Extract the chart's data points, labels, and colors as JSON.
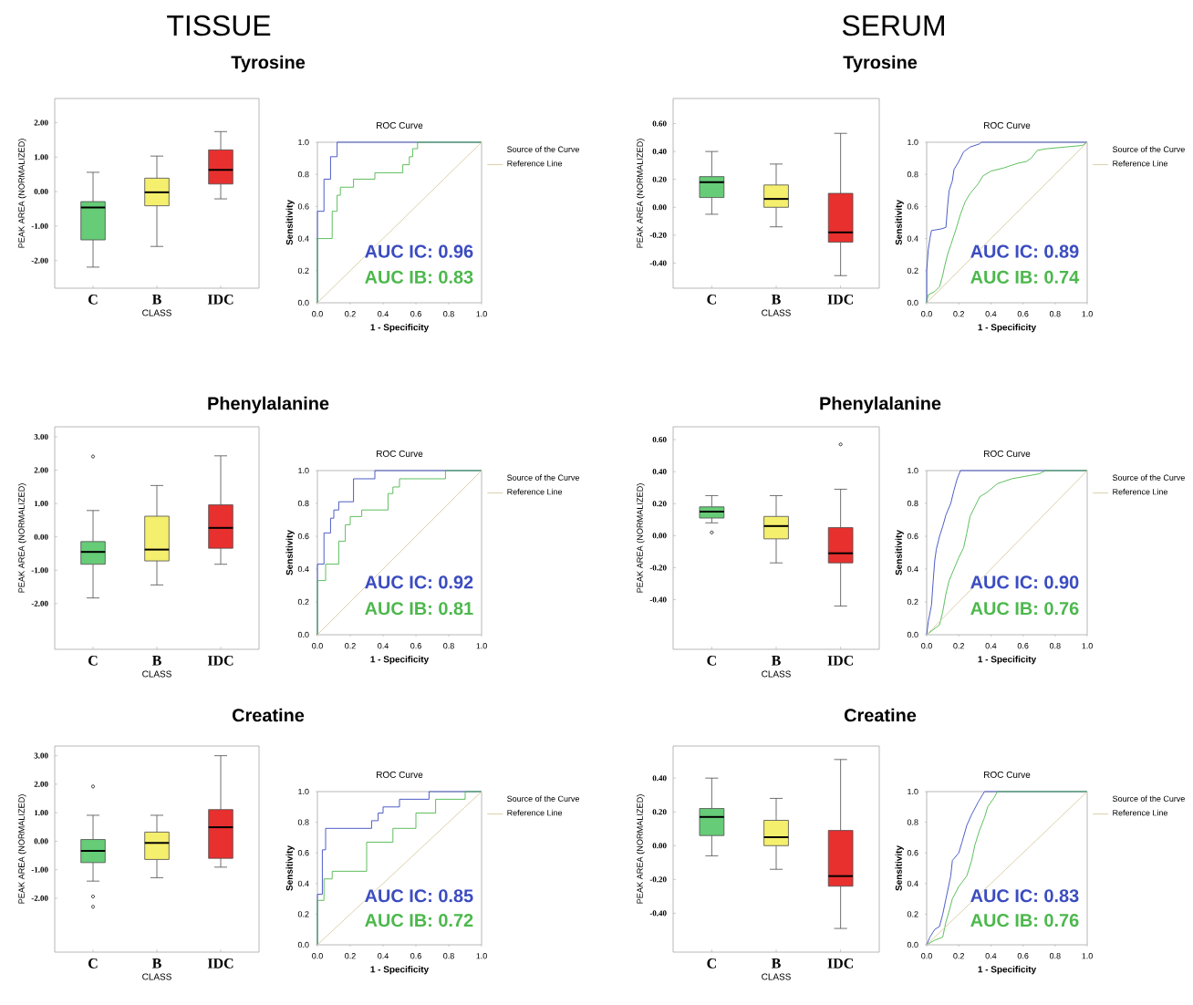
{
  "chart_data": [
    {
      "type": "box",
      "title": "Tyrosine",
      "annotations": [
        "TISSUE"
      ],
      "xlabel": "CLASS",
      "ylabel": "PEAK AREA (NORMALIZED)",
      "categories": [
        "C",
        "B",
        "IDC"
      ],
      "colors": [
        "#66cc77",
        "#f5ef6e",
        "#e8302f"
      ],
      "boxes": [
        {
          "low": -2.19,
          "q1": -1.4,
          "median": -0.46,
          "q3": -0.29,
          "high": 0.56
        },
        {
          "low": -1.59,
          "q1": -0.41,
          "median": -0.02,
          "q3": 0.39,
          "high": 1.03
        },
        {
          "low": -0.21,
          "q1": 0.22,
          "median": 0.63,
          "q3": 1.21,
          "high": 1.74
        }
      ],
      "ylim": [
        -2.8,
        2.7
      ],
      "yticks": [
        {
          "value": -2,
          "label": "-2.00"
        },
        {
          "value": -1,
          "label": "-1.00"
        },
        {
          "value": 0,
          "label": "0.00"
        },
        {
          "value": 1,
          "label": "1.00"
        },
        {
          "value": 2,
          "label": "2.00"
        }
      ]
    },
    {
      "type": "line",
      "title": "ROC Curve",
      "xlabel": "1 - Specificity",
      "ylabel": "Sensitivity",
      "legend": "right",
      "legend_title": "Source of the Curve",
      "annotations": [
        "AUC IC: 0.96",
        "AUC IB: 0.83"
      ],
      "xlim": [
        0,
        1
      ],
      "ylim": [
        0,
        1
      ],
      "xticks": [
        {
          "value": 0,
          "label": "0.0"
        },
        {
          "value": 0.2,
          "label": "0.2"
        },
        {
          "value": 0.4,
          "label": "0.4"
        },
        {
          "value": 0.6,
          "label": "0.6"
        },
        {
          "value": 0.8,
          "label": "0.8"
        },
        {
          "value": 1,
          "label": "1.0"
        }
      ],
      "yticks": [
        {
          "value": 0,
          "label": "0.0"
        },
        {
          "value": 0.2,
          "label": "0.2"
        },
        {
          "value": 0.4,
          "label": "0.4"
        },
        {
          "value": 0.6,
          "label": "0.6"
        },
        {
          "value": 0.8,
          "label": "0.8"
        },
        {
          "value": 1,
          "label": "1.0"
        }
      ],
      "series": [
        {
          "color": "#3b4cc0",
          "x": [
            0,
            0,
            0.04,
            0.04,
            0.08,
            0.08,
            0.12,
            0.12,
            1
          ],
          "values": [
            0,
            0.57,
            0.57,
            0.77,
            0.77,
            0.91,
            0.91,
            1,
            1
          ]
        },
        {
          "color": "#4db84d",
          "x": [
            0,
            0,
            0.09,
            0.09,
            0.12,
            0.12,
            0.14,
            0.14,
            0.22,
            0.22,
            0.35,
            0.35,
            0.52,
            0.52,
            0.56,
            0.56,
            0.58,
            0.58,
            0.61,
            0.61,
            1
          ],
          "values": [
            0,
            0.4,
            0.4,
            0.57,
            0.57,
            0.67,
            0.67,
            0.72,
            0.72,
            0.77,
            0.77,
            0.81,
            0.81,
            0.86,
            0.86,
            0.91,
            0.91,
            0.96,
            0.96,
            1,
            1
          ]
        },
        {
          "name": "Reference Line",
          "color": "#d8cca0",
          "x": [
            0,
            1
          ],
          "values": [
            0,
            1
          ]
        }
      ]
    },
    {
      "type": "box",
      "title": "Tyrosine",
      "annotations": [
        "SERUM"
      ],
      "xlabel": "CLASS",
      "ylabel": "PEAK AREA (NORMALIZED)",
      "categories": [
        "C",
        "B",
        "IDC"
      ],
      "colors": [
        "#66cc77",
        "#f5ef6e",
        "#e8302f"
      ],
      "boxes": [
        {
          "low": -0.05,
          "q1": 0.07,
          "median": 0.18,
          "q3": 0.22,
          "high": 0.4
        },
        {
          "low": -0.14,
          "q1": 0.0,
          "median": 0.06,
          "q3": 0.16,
          "high": 0.31
        },
        {
          "low": -0.49,
          "q1": -0.25,
          "median": -0.18,
          "q3": 0.1,
          "high": 0.53
        }
      ],
      "ylim": [
        -0.58,
        0.78
      ],
      "yticks": [
        {
          "value": -0.4,
          "label": "-0.40"
        },
        {
          "value": -0.2,
          "label": "-0.20"
        },
        {
          "value": 0,
          "label": "0.00"
        },
        {
          "value": 0.2,
          "label": "0.20"
        },
        {
          "value": 0.4,
          "label": "0.40"
        },
        {
          "value": 0.6,
          "label": "0.60"
        }
      ]
    },
    {
      "type": "line",
      "title": "ROC Curve",
      "xlabel": "1 - Specificity",
      "ylabel": "Sensitivity",
      "legend": "right",
      "legend_title": "Source of the Curve",
      "annotations": [
        "AUC IC: 0.89",
        "AUC IB: 0.74"
      ],
      "xlim": [
        0,
        1
      ],
      "ylim": [
        0,
        1
      ],
      "xticks": [
        {
          "value": 0,
          "label": "0.0"
        },
        {
          "value": 0.2,
          "label": "0.2"
        },
        {
          "value": 0.4,
          "label": "0.4"
        },
        {
          "value": 0.6,
          "label": "0.6"
        },
        {
          "value": 0.8,
          "label": "0.8"
        },
        {
          "value": 1,
          "label": "1.0"
        }
      ],
      "yticks": [
        {
          "value": 0,
          "label": "0.0"
        },
        {
          "value": 0.2,
          "label": "0.2"
        },
        {
          "value": 0.4,
          "label": "0.4"
        },
        {
          "value": 0.6,
          "label": "0.6"
        },
        {
          "value": 0.8,
          "label": "0.8"
        },
        {
          "value": 1,
          "label": "1.0"
        }
      ],
      "series": [
        {
          "color": "#3b4cc0",
          "x": [
            0,
            0,
            0.01,
            0.02,
            0.03,
            0.09,
            0.12,
            0.13,
            0.14,
            0.16,
            0.17,
            0.2,
            0.23,
            0.27,
            0.33,
            0.34,
            1
          ],
          "values": [
            0,
            0.2,
            0.33,
            0.4,
            0.45,
            0.46,
            0.47,
            0.6,
            0.7,
            0.76,
            0.83,
            0.88,
            0.94,
            0.97,
            0.99,
            1,
            1
          ]
        },
        {
          "color": "#4db84d",
          "x": [
            0,
            0.01,
            0.05,
            0.08,
            0.1,
            0.11,
            0.13,
            0.15,
            0.18,
            0.21,
            0.24,
            0.27,
            0.32,
            0.35,
            0.4,
            0.48,
            0.57,
            0.62,
            0.65,
            0.69,
            0.75,
            0.97,
            1
          ],
          "values": [
            0,
            0.05,
            0.07,
            0.1,
            0.17,
            0.22,
            0.3,
            0.36,
            0.45,
            0.55,
            0.63,
            0.68,
            0.74,
            0.79,
            0.82,
            0.84,
            0.87,
            0.88,
            0.9,
            0.95,
            0.96,
            0.98,
            1
          ]
        },
        {
          "name": "Reference Line",
          "color": "#d8cca0",
          "x": [
            0,
            1
          ],
          "values": [
            0,
            1
          ]
        }
      ]
    },
    {
      "type": "box",
      "title": "Phenylalanine",
      "xlabel": "CLASS",
      "ylabel": "PEAK AREA (NORMALIZED)",
      "categories": [
        "C",
        "B",
        "IDC"
      ],
      "colors": [
        "#66cc77",
        "#f5ef6e",
        "#e8302f"
      ],
      "boxes": [
        {
          "low": -1.83,
          "q1": -0.82,
          "median": -0.45,
          "q3": -0.14,
          "high": 0.79,
          "outliers": [
            2.41
          ]
        },
        {
          "low": -1.44,
          "q1": -0.72,
          "median": -0.38,
          "q3": 0.62,
          "high": 1.54
        },
        {
          "low": -0.82,
          "q1": -0.34,
          "median": 0.27,
          "q3": 0.96,
          "high": 2.43
        }
      ],
      "ylim": [
        -3.37,
        3.3
      ],
      "yticks": [
        {
          "value": -2,
          "label": "-2.00"
        },
        {
          "value": -1,
          "label": "-1.00"
        },
        {
          "value": 0,
          "label": "0.00"
        },
        {
          "value": 1,
          "label": "1.00"
        },
        {
          "value": 2,
          "label": "2.00"
        },
        {
          "value": 3,
          "label": "3.00"
        }
      ]
    },
    {
      "type": "line",
      "title": "ROC Curve",
      "xlabel": "1 - Specificity",
      "ylabel": "Sensitivity",
      "legend": "right",
      "legend_title": "Source of the Curve",
      "annotations": [
        "AUC IC: 0.92",
        "AUC IB: 0.81"
      ],
      "xlim": [
        0,
        1
      ],
      "ylim": [
        0,
        1
      ],
      "xticks": [
        {
          "value": 0,
          "label": "0.0"
        },
        {
          "value": 0.2,
          "label": "0.2"
        },
        {
          "value": 0.4,
          "label": "0.4"
        },
        {
          "value": 0.6,
          "label": "0.6"
        },
        {
          "value": 0.8,
          "label": "0.8"
        },
        {
          "value": 1,
          "label": "1.0"
        }
      ],
      "yticks": [
        {
          "value": 0,
          "label": "0.0"
        },
        {
          "value": 0.2,
          "label": "0.2"
        },
        {
          "value": 0.4,
          "label": "0.4"
        },
        {
          "value": 0.6,
          "label": "0.6"
        },
        {
          "value": 0.8,
          "label": "0.8"
        },
        {
          "value": 1,
          "label": "1.0"
        }
      ],
      "series": [
        {
          "color": "#3b4cc0",
          "x": [
            0,
            0,
            0.04,
            0.04,
            0.08,
            0.08,
            0.1,
            0.1,
            0.13,
            0.13,
            0.22,
            0.22,
            0.35,
            0.35,
            1
          ],
          "values": [
            0,
            0.43,
            0.43,
            0.62,
            0.62,
            0.71,
            0.71,
            0.76,
            0.76,
            0.81,
            0.81,
            0.95,
            0.95,
            1,
            1
          ]
        },
        {
          "color": "#4db84d",
          "x": [
            0,
            0,
            0.05,
            0.05,
            0.13,
            0.13,
            0.17,
            0.17,
            0.2,
            0.2,
            0.27,
            0.27,
            0.43,
            0.43,
            0.46,
            0.46,
            0.5,
            0.5,
            0.78,
            0.78,
            1
          ],
          "values": [
            0,
            0.33,
            0.33,
            0.43,
            0.43,
            0.57,
            0.57,
            0.67,
            0.67,
            0.72,
            0.72,
            0.76,
            0.76,
            0.86,
            0.86,
            0.9,
            0.9,
            0.95,
            0.95,
            1,
            1
          ]
        },
        {
          "name": "Reference Line",
          "color": "#d8cca0",
          "x": [
            0,
            1
          ],
          "values": [
            0,
            1
          ]
        }
      ]
    },
    {
      "type": "box",
      "title": "Phenylalanine",
      "xlabel": "CLASS",
      "ylabel": "PEAK AREA (NORMALIZED)",
      "categories": [
        "C",
        "B",
        "IDC"
      ],
      "colors": [
        "#66cc77",
        "#f5ef6e",
        "#e8302f"
      ],
      "boxes": [
        {
          "low": 0.08,
          "q1": 0.11,
          "median": 0.15,
          "q3": 0.18,
          "high": 0.25,
          "outliers": [
            0.02
          ]
        },
        {
          "low": -0.17,
          "q1": -0.02,
          "median": 0.06,
          "q3": 0.12,
          "high": 0.25
        },
        {
          "low": -0.44,
          "q1": -0.17,
          "median": -0.11,
          "q3": 0.05,
          "high": 0.29,
          "outliers": [
            0.57
          ]
        }
      ],
      "ylim": [
        -0.71,
        0.68
      ],
      "yticks": [
        {
          "value": -0.4,
          "label": "-0.40"
        },
        {
          "value": -0.2,
          "label": "-0.20"
        },
        {
          "value": 0,
          "label": "0.00"
        },
        {
          "value": 0.2,
          "label": "0.20"
        },
        {
          "value": 0.4,
          "label": "0.40"
        },
        {
          "value": 0.6,
          "label": "0.60"
        }
      ]
    },
    {
      "type": "line",
      "title": "ROC Curve",
      "xlabel": "1 - Specificity",
      "ylabel": "Sensitivity",
      "legend": "right",
      "legend_title": "Source of the Curve",
      "annotations": [
        "AUC IC: 0.90",
        "AUC IB: 0.76"
      ],
      "xlim": [
        0,
        1
      ],
      "ylim": [
        0,
        1
      ],
      "xticks": [
        {
          "value": 0,
          "label": "0.0"
        },
        {
          "value": 0.2,
          "label": "0.2"
        },
        {
          "value": 0.4,
          "label": "0.4"
        },
        {
          "value": 0.6,
          "label": "0.6"
        },
        {
          "value": 0.8,
          "label": "0.8"
        },
        {
          "value": 1,
          "label": "1.0"
        }
      ],
      "yticks": [
        {
          "value": 0,
          "label": "0.0"
        },
        {
          "value": 0.2,
          "label": "0.2"
        },
        {
          "value": 0.4,
          "label": "0.4"
        },
        {
          "value": 0.6,
          "label": "0.6"
        },
        {
          "value": 0.8,
          "label": "0.8"
        },
        {
          "value": 1,
          "label": "1.0"
        }
      ],
      "series": [
        {
          "color": "#3b4cc0",
          "x": [
            0,
            0.01,
            0.03,
            0.04,
            0.05,
            0.06,
            0.08,
            0.1,
            0.12,
            0.15,
            0.17,
            0.19,
            0.21,
            1
          ],
          "values": [
            0,
            0.08,
            0.18,
            0.32,
            0.45,
            0.52,
            0.6,
            0.66,
            0.73,
            0.8,
            0.88,
            0.95,
            1,
            1
          ]
        },
        {
          "color": "#4db84d",
          "x": [
            0,
            0.04,
            0.08,
            0.1,
            0.12,
            0.14,
            0.17,
            0.2,
            0.23,
            0.25,
            0.27,
            0.3,
            0.33,
            0.38,
            0.44,
            0.53,
            0.7,
            0.74,
            1
          ],
          "values": [
            0,
            0.03,
            0.06,
            0.14,
            0.25,
            0.33,
            0.4,
            0.47,
            0.53,
            0.62,
            0.72,
            0.78,
            0.84,
            0.87,
            0.92,
            0.95,
            0.98,
            1,
            1
          ]
        },
        {
          "name": "Reference Line",
          "color": "#d8cca0",
          "x": [
            0,
            1
          ],
          "values": [
            0,
            1
          ]
        }
      ]
    },
    {
      "type": "box",
      "title": "Creatine",
      "xlabel": "CLASS",
      "ylabel": "PEAK AREA (NORMALIZED)",
      "categories": [
        "C",
        "B",
        "IDC"
      ],
      "colors": [
        "#66cc77",
        "#f5ef6e",
        "#e8302f"
      ],
      "boxes": [
        {
          "low": -1.4,
          "q1": -0.75,
          "median": -0.34,
          "q3": 0.06,
          "high": 0.91,
          "outliers": [
            1.92,
            -1.94,
            -2.3
          ]
        },
        {
          "low": -1.28,
          "q1": -0.64,
          "median": -0.06,
          "q3": 0.32,
          "high": 0.91
        },
        {
          "low": -0.91,
          "q1": -0.6,
          "median": 0.49,
          "q3": 1.11,
          "high": 3.0
        }
      ],
      "ylim": [
        -3.89,
        3.34
      ],
      "yticks": [
        {
          "value": -2,
          "label": "-2.00"
        },
        {
          "value": -1,
          "label": "-1.00"
        },
        {
          "value": 0,
          "label": "0.00"
        },
        {
          "value": 1,
          "label": "1.00"
        },
        {
          "value": 2,
          "label": "2.00"
        },
        {
          "value": 3,
          "label": "3.00"
        }
      ]
    },
    {
      "type": "line",
      "title": "ROC Curve",
      "xlabel": "1 - Specificity",
      "ylabel": "Sensitivity",
      "legend": "right",
      "legend_title": "Source of the Curve",
      "annotations": [
        "AUC IC: 0.85",
        "AUC IB: 0.72"
      ],
      "xlim": [
        0,
        1
      ],
      "ylim": [
        0,
        1
      ],
      "xticks": [
        {
          "value": 0,
          "label": "0.0"
        },
        {
          "value": 0.2,
          "label": "0.2"
        },
        {
          "value": 0.4,
          "label": "0.4"
        },
        {
          "value": 0.6,
          "label": "0.6"
        },
        {
          "value": 0.8,
          "label": "0.8"
        },
        {
          "value": 1,
          "label": "1.0"
        }
      ],
      "yticks": [
        {
          "value": 0,
          "label": "0.0"
        },
        {
          "value": 0.2,
          "label": "0.2"
        },
        {
          "value": 0.4,
          "label": "0.4"
        },
        {
          "value": 0.6,
          "label": "0.6"
        },
        {
          "value": 0.8,
          "label": "0.8"
        },
        {
          "value": 1,
          "label": "1.0"
        }
      ],
      "series": [
        {
          "color": "#3b4cc0",
          "x": [
            0,
            0,
            0.03,
            0.03,
            0.05,
            0.05,
            0.33,
            0.33,
            0.37,
            0.37,
            0.4,
            0.4,
            0.5,
            0.5,
            0.68,
            0.68,
            1
          ],
          "values": [
            0,
            0.33,
            0.33,
            0.62,
            0.62,
            0.76,
            0.76,
            0.81,
            0.81,
            0.86,
            0.86,
            0.9,
            0.9,
            0.95,
            0.95,
            1,
            1
          ]
        },
        {
          "color": "#4db84d",
          "x": [
            0,
            0,
            0.04,
            0.04,
            0.09,
            0.09,
            0.3,
            0.3,
            0.46,
            0.46,
            0.6,
            0.6,
            0.72,
            0.72,
            0.9,
            0.9,
            1
          ],
          "values": [
            0,
            0.29,
            0.29,
            0.43,
            0.43,
            0.48,
            0.48,
            0.67,
            0.67,
            0.76,
            0.76,
            0.86,
            0.86,
            0.95,
            0.95,
            1,
            1
          ]
        },
        {
          "name": "Reference Line",
          "color": "#d8cca0",
          "x": [
            0,
            1
          ],
          "values": [
            0,
            1
          ]
        }
      ]
    },
    {
      "type": "box",
      "title": "Creatine",
      "xlabel": "CLASS",
      "ylabel": "PEAK AREA (NORMALIZED)",
      "categories": [
        "C",
        "B",
        "IDC"
      ],
      "colors": [
        "#66cc77",
        "#f5ef6e",
        "#e8302f"
      ],
      "boxes": [
        {
          "low": -0.06,
          "q1": 0.06,
          "median": 0.17,
          "q3": 0.22,
          "high": 0.4
        },
        {
          "low": -0.14,
          "q1": 0.0,
          "median": 0.05,
          "q3": 0.15,
          "high": 0.28
        },
        {
          "low": -0.49,
          "q1": -0.24,
          "median": -0.18,
          "q3": 0.09,
          "high": 0.51
        }
      ],
      "ylim": [
        -0.63,
        0.59
      ],
      "yticks": [
        {
          "value": -0.4,
          "label": "-0.40"
        },
        {
          "value": -0.2,
          "label": "-0.20"
        },
        {
          "value": 0,
          "label": "0.00"
        },
        {
          "value": 0.2,
          "label": "0.20"
        },
        {
          "value": 0.4,
          "label": "0.40"
        }
      ]
    },
    {
      "type": "line",
      "title": "ROC Curve",
      "xlabel": "1 - Specificity",
      "ylabel": "Sensitivity",
      "legend": "right",
      "legend_title": "Source of the Curve",
      "annotations": [
        "AUC IC: 0.83",
        "AUC IB: 0.76"
      ],
      "xlim": [
        0,
        1
      ],
      "ylim": [
        0,
        1
      ],
      "xticks": [
        {
          "value": 0,
          "label": "0.0"
        },
        {
          "value": 0.2,
          "label": "0.2"
        },
        {
          "value": 0.4,
          "label": "0.4"
        },
        {
          "value": 0.6,
          "label": "0.6"
        },
        {
          "value": 0.8,
          "label": "0.8"
        },
        {
          "value": 1,
          "label": "1.0"
        }
      ],
      "yticks": [
        {
          "value": 0,
          "label": "0.0"
        },
        {
          "value": 0.2,
          "label": "0.2"
        },
        {
          "value": 0.4,
          "label": "0.4"
        },
        {
          "value": 0.6,
          "label": "0.6"
        },
        {
          "value": 0.8,
          "label": "0.8"
        },
        {
          "value": 1,
          "label": "1.0"
        }
      ],
      "series": [
        {
          "color": "#3b4cc0",
          "x": [
            0,
            0.02,
            0.05,
            0.08,
            0.1,
            0.12,
            0.15,
            0.16,
            0.2,
            0.22,
            0.25,
            0.28,
            0.32,
            0.36,
            1
          ],
          "values": [
            0,
            0.05,
            0.1,
            0.12,
            0.2,
            0.3,
            0.45,
            0.55,
            0.6,
            0.67,
            0.78,
            0.85,
            0.93,
            1,
            1
          ]
        },
        {
          "color": "#4db84d",
          "x": [
            0,
            0.05,
            0.1,
            0.12,
            0.14,
            0.16,
            0.2,
            0.25,
            0.28,
            0.3,
            0.33,
            0.36,
            0.38,
            0.42,
            0.44,
            1
          ],
          "values": [
            0,
            0.03,
            0.05,
            0.15,
            0.22,
            0.3,
            0.38,
            0.45,
            0.55,
            0.65,
            0.75,
            0.83,
            0.9,
            0.96,
            1,
            1
          ]
        },
        {
          "name": "Reference Line",
          "color": "#d8cca0",
          "x": [
            0,
            1
          ],
          "values": [
            0,
            1
          ]
        }
      ]
    }
  ]
}
